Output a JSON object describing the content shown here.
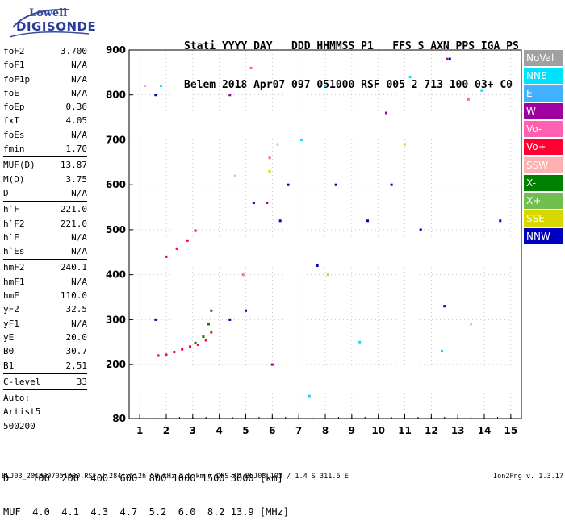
{
  "logo": {
    "line1": "Lowell",
    "line2": "DIGISONDE"
  },
  "header": {
    "line1": "Stati YYYY DAY   DDD HHMMSS P1   FFS S AXN PPS IGA PS",
    "line2": "Belem 2018 Apr07 097 051000 RSF 005 2 713 100 03+ C0"
  },
  "params": [
    {
      "k": "foF2",
      "v": "3.700"
    },
    {
      "k": "foF1",
      "v": "N/A"
    },
    {
      "k": "foF1p",
      "v": "N/A"
    },
    {
      "k": "foE",
      "v": "N/A"
    },
    {
      "k": "foEp",
      "v": "0.36"
    },
    {
      "k": "fxI",
      "v": "4.05"
    },
    {
      "k": "foEs",
      "v": "N/A"
    },
    {
      "k": "fmin",
      "v": "1.70"
    },
    {
      "k": "MUF(D)",
      "v": "13.87",
      "sep": true
    },
    {
      "k": "M(D)",
      "v": "3.75"
    },
    {
      "k": "D",
      "v": "N/A"
    },
    {
      "k": "h`F",
      "v": "221.0",
      "sep": true
    },
    {
      "k": "h`F2",
      "v": "221.0"
    },
    {
      "k": "h`E",
      "v": "N/A"
    },
    {
      "k": "h`Es",
      "v": "N/A"
    },
    {
      "k": "hmF2",
      "v": "240.1",
      "sep": true
    },
    {
      "k": "hmF1",
      "v": "N/A"
    },
    {
      "k": "hmE",
      "v": "110.0"
    },
    {
      "k": "yF2",
      "v": "32.5"
    },
    {
      "k": "yF1",
      "v": "N/A"
    },
    {
      "k": "yE",
      "v": "20.0"
    },
    {
      "k": "B0",
      "v": "30.7"
    },
    {
      "k": "B1",
      "v": "2.51"
    },
    {
      "k": "C-level",
      "v": "33",
      "sep": true
    },
    {
      "k": "Auto:",
      "v": "",
      "sep": true
    },
    {
      "k": "Artist5",
      "v": ""
    },
    {
      "k": "500200",
      "v": ""
    }
  ],
  "legend": [
    {
      "label": "NoVal",
      "color": "#a0a0a0"
    },
    {
      "label": "NNE",
      "color": "#00e0ff"
    },
    {
      "label": "E",
      "color": "#40b0ff"
    },
    {
      "label": "W",
      "color": "#a000a0"
    },
    {
      "label": "Vo-",
      "color": "#ff60b0"
    },
    {
      "label": "Vo+",
      "color": "#ff0030"
    },
    {
      "label": "SSW",
      "color": "#ffb0b0"
    },
    {
      "label": "X-",
      "color": "#008000"
    },
    {
      "label": "X+",
      "color": "#70c050"
    },
    {
      "label": "SSE",
      "color": "#d8d800"
    },
    {
      "label": "NNW",
      "color": "#0000c0"
    }
  ],
  "dmuf": {
    "line1": "D    100  200  400  600  800 1000 1500 3000 [km]",
    "line2": "MUF  4.0  4.1  4.3  4.7  5.2  6.0  8.2 13.9 [MHz]"
  },
  "footer": {
    "left": "BLJ03_2018097051000.RSF / 284fx512h 50 kHz 2.5 km / DPS-4D BLJ03 103 / 1.4 S 311.6 E",
    "right": "Ion2Png v. 1.3.17"
  },
  "chart_data": {
    "type": "scatter",
    "xlim": [
      0.6,
      15.4
    ],
    "ylim": [
      80,
      900
    ],
    "x_ticks": [
      1,
      2,
      3,
      4,
      5,
      6,
      7,
      8,
      9,
      10,
      11,
      12,
      13,
      14,
      15
    ],
    "y_ticks": [
      80,
      200,
      300,
      400,
      500,
      600,
      700,
      800,
      900
    ],
    "grid": true,
    "series": [
      {
        "name": "Vo+",
        "color": "#ff0030",
        "points": [
          [
            1.7,
            220
          ],
          [
            2.0,
            222
          ],
          [
            2.3,
            228
          ],
          [
            2.6,
            234
          ],
          [
            2.9,
            240
          ],
          [
            3.2,
            244
          ],
          [
            3.5,
            254
          ],
          [
            3.7,
            272
          ]
        ]
      },
      {
        "name": "X-",
        "color": "#008000",
        "points": [
          [
            3.1,
            248
          ],
          [
            3.4,
            262
          ],
          [
            3.6,
            290
          ],
          [
            3.7,
            320
          ]
        ]
      },
      {
        "name": "Vo+",
        "color": "#ff0030",
        "points": [
          [
            2.0,
            440
          ],
          [
            2.4,
            458
          ],
          [
            2.8,
            476
          ],
          [
            3.1,
            498
          ]
        ]
      },
      {
        "name": "NNW",
        "color": "#0000c0",
        "points": [
          [
            1.6,
            800
          ],
          [
            1.6,
            300
          ],
          [
            4.4,
            300
          ],
          [
            5.0,
            320
          ],
          [
            5.3,
            560
          ],
          [
            6.3,
            520
          ],
          [
            6.6,
            600
          ],
          [
            7.7,
            420
          ],
          [
            8.4,
            600
          ],
          [
            9.6,
            520
          ],
          [
            10.5,
            600
          ],
          [
            11.6,
            500
          ],
          [
            12.5,
            330
          ],
          [
            12.7,
            880
          ],
          [
            14.6,
            520
          ]
        ]
      },
      {
        "name": "NNE",
        "color": "#00e0ff",
        "points": [
          [
            1.8,
            820
          ],
          [
            7.1,
            700
          ],
          [
            7.4,
            130
          ],
          [
            8.0,
            820
          ],
          [
            9.3,
            250
          ],
          [
            11.2,
            840
          ],
          [
            12.4,
            230
          ],
          [
            13.9,
            810
          ]
        ]
      },
      {
        "name": "W",
        "color": "#a000a0",
        "points": [
          [
            4.4,
            800
          ],
          [
            5.8,
            560
          ],
          [
            6.0,
            200
          ],
          [
            10.3,
            760
          ],
          [
            12.6,
            880
          ]
        ]
      },
      {
        "name": "Vo-",
        "color": "#ff60b0",
        "points": [
          [
            4.9,
            400
          ],
          [
            5.2,
            860
          ],
          [
            5.9,
            660
          ],
          [
            13.4,
            790
          ]
        ]
      },
      {
        "name": "SSE",
        "color": "#d8d800",
        "points": [
          [
            5.9,
            630
          ],
          [
            8.1,
            400
          ],
          [
            11.0,
            690
          ]
        ]
      },
      {
        "name": "SSW",
        "color": "#ffb0b0",
        "points": [
          [
            1.2,
            820
          ],
          [
            4.6,
            620
          ],
          [
            6.2,
            690
          ],
          [
            13.5,
            290
          ]
        ]
      }
    ]
  }
}
